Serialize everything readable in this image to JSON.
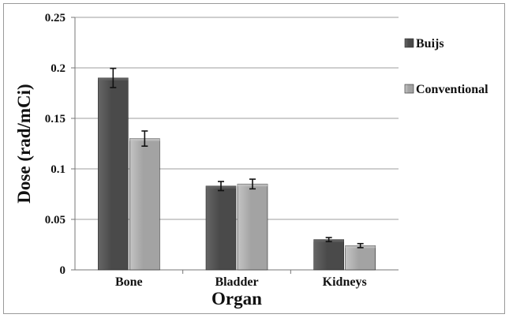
{
  "chart_data": {
    "type": "bar",
    "title": "",
    "xlabel": "Organ",
    "ylabel": "Dose (rad/mCi)",
    "categories": [
      "Bone",
      "Bladder",
      "Kidneys"
    ],
    "ylim": [
      0,
      0.25
    ],
    "yticks": [
      0,
      0.05,
      0.1,
      0.15,
      0.2,
      0.25
    ],
    "ytick_labels": [
      "0",
      "0.05",
      "0.1",
      "0.15",
      "0.2",
      "0.25"
    ],
    "grid": true,
    "legend_position": "right",
    "series": [
      {
        "name": "Buijs",
        "values": [
          0.19,
          0.083,
          0.03
        ],
        "errors": [
          0.0095,
          0.0045,
          0.002
        ],
        "color": "#4a4a4a",
        "highlight": "#666666"
      },
      {
        "name": "Conventional",
        "values": [
          0.13,
          0.085,
          0.024
        ],
        "errors": [
          0.0075,
          0.0048,
          0.002
        ],
        "color": "#a3a3a3",
        "highlight": "#c4c4c4"
      }
    ]
  }
}
